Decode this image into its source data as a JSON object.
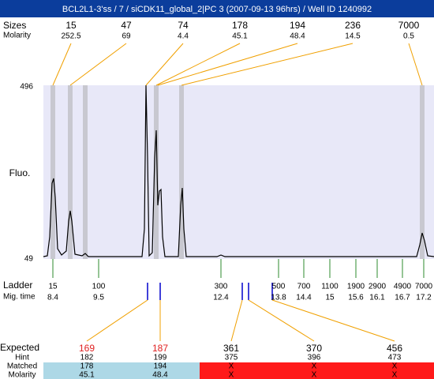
{
  "title": "BCL2L1-3'ss / 7 / siCDK11_global_2|PC 3 (2007-09-13 96hrs) / Well ID 1240992",
  "peaks": {
    "sizes_label": "Sizes",
    "molarity_label": "Molarity",
    "sizes": [
      15,
      47,
      74,
      178,
      194,
      236,
      7000
    ],
    "molarity": [
      252.5,
      69,
      4.4,
      45.1,
      48.4,
      14.5,
      0.5
    ]
  },
  "axis": {
    "label": "Fluo.",
    "top": 496,
    "bottom": 49
  },
  "ladder": {
    "label": "Ladder",
    "mig_label": "Mig. time",
    "sizes": [
      15,
      100,
      300,
      500,
      700,
      1100,
      1900,
      2900,
      4900,
      7000
    ],
    "mig_times": [
      8.4,
      9.5,
      12.4,
      13.8,
      14.4,
      15,
      15.6,
      16.1,
      16.7,
      17.2
    ]
  },
  "expected": {
    "expected_label": "Expected",
    "hint_label": "Hint",
    "matched_label": "Matched",
    "molarity_label": "Molarity",
    "expected": [
      169,
      187,
      361,
      370,
      456
    ],
    "hint": [
      182,
      199,
      375,
      396,
      473
    ],
    "matched": [
      178,
      194,
      "X",
      "X",
      "X"
    ],
    "molarity": [
      45.1,
      48.4,
      "X",
      "X",
      "X"
    ]
  }
}
